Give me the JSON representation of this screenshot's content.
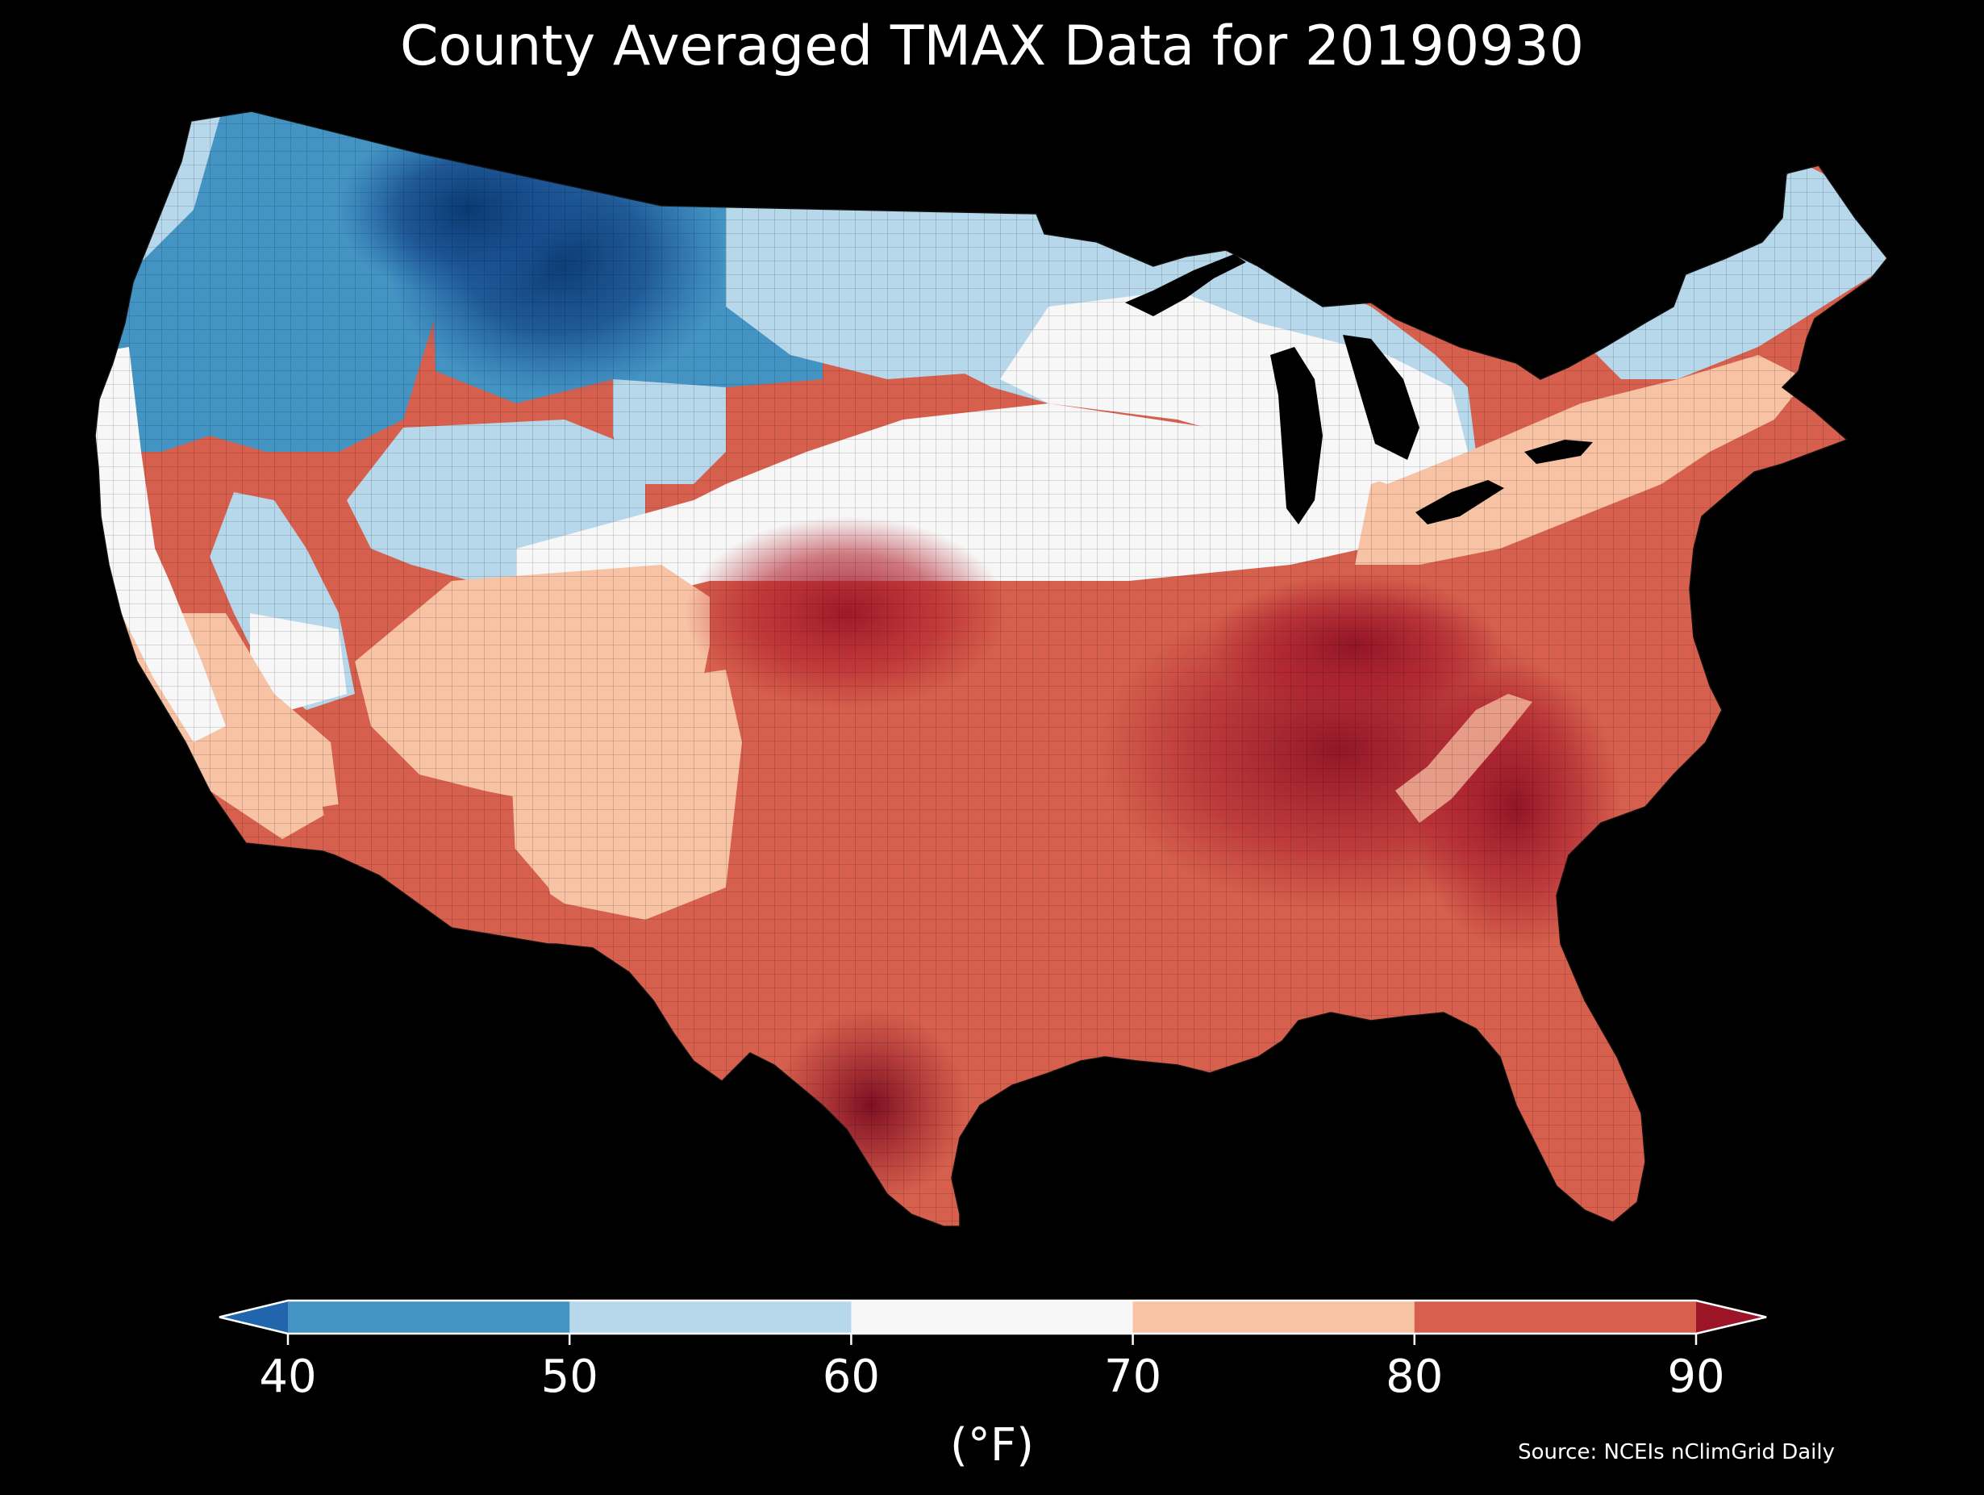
{
  "title": "County Averaged TMAX Data for 20190930",
  "colorbar": {
    "unit_label": "(°F)",
    "ticks": [
      "40",
      "50",
      "60",
      "70",
      "80",
      "90"
    ],
    "bins": [
      {
        "range": "<40",
        "color": "#2166ac"
      },
      {
        "range": "40-50",
        "color": "#4393c3"
      },
      {
        "range": "50-60",
        "color": "#b7d7ea"
      },
      {
        "range": "60-70",
        "color": "#f7f7f7"
      },
      {
        "range": "70-80",
        "color": "#f8c2a4"
      },
      {
        "range": "80-90",
        "color": "#d6604d"
      },
      {
        "range": ">90",
        "color": "#9b1527"
      }
    ]
  },
  "source": "Source: NCEIs nClimGrid Daily",
  "map": {
    "region": "Contiguous United States",
    "background": "#000000",
    "regional_pattern": [
      {
        "region": "Northern Rockies (MT/ID/WY)",
        "band": "<40 to 40-50"
      },
      {
        "region": "Pacific Northwest",
        "band": "40-50 to 50-60"
      },
      {
        "region": "Great Basin (NV/UT)",
        "band": "40-50 to 60-70"
      },
      {
        "region": "Upper Midwest / Great Lakes",
        "band": "50-60 to 60-70"
      },
      {
        "region": "Northeast / New England",
        "band": "50-60 to 70-80"
      },
      {
        "region": "California coast",
        "band": "60-70 to 70-80"
      },
      {
        "region": "Desert Southwest",
        "band": "70-80 to 80-90"
      },
      {
        "region": "Southern Plains (KS/OK/TX panhandle)",
        "band": "80-90 to >90"
      },
      {
        "region": "Southeast / Ohio & Tennessee Valleys",
        "band": "80-90 to >90"
      },
      {
        "region": "South Texas",
        "band": ">90"
      },
      {
        "region": "Florida",
        "band": "80-90"
      }
    ]
  }
}
